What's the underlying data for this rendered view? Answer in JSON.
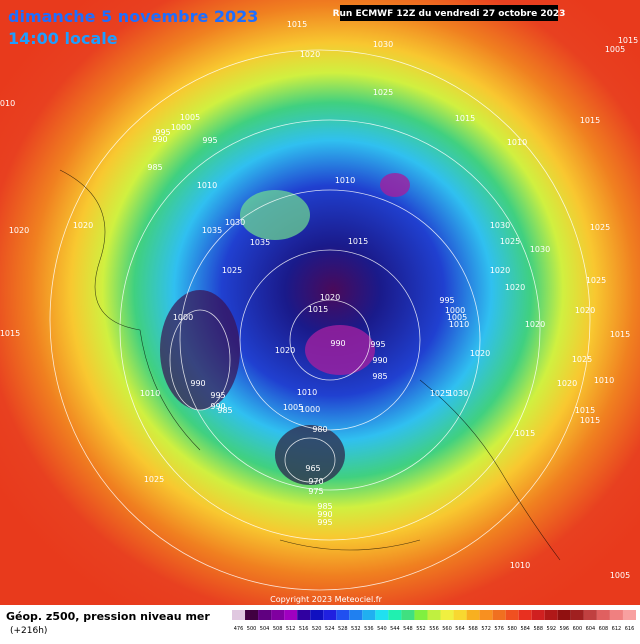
{
  "header": {
    "title": "dimanche 5 novembre 2023",
    "time": "14:00 locale",
    "run": "Run ECMWF 12Z du vendredi 27 octobre 2023"
  },
  "footer": {
    "field": "Géop. z500, pression niveau mer",
    "lead": "(+216h)",
    "copyright": "Copyright 2023 Meteociel.fr"
  },
  "colorbar": {
    "labels": [
      "476",
      "500",
      "504",
      "508",
      "512",
      "516",
      "520",
      "524",
      "528",
      "532",
      "536",
      "540",
      "544",
      "548",
      "552",
      "556",
      "560",
      "564",
      "568",
      "572",
      "576",
      "580",
      "584",
      "588",
      "592",
      "596",
      "600",
      "604",
      "608",
      "612",
      "616"
    ]
  },
  "isobar_labels": [
    "1015",
    "1020",
    "1030",
    "1025",
    "1005",
    "1000",
    "995",
    "990",
    "995",
    "985",
    "1010",
    "1010",
    "1010",
    "1015",
    "1015",
    "1030",
    "1035",
    "1035",
    "1025",
    "1015",
    "1030",
    "1025",
    "1020",
    "1030",
    "1020",
    "995",
    "1000",
    "1005",
    "1010",
    "1020",
    "1015",
    "990",
    "995",
    "990",
    "985",
    "1020",
    "1000",
    "990",
    "995",
    "990",
    "985",
    "1005",
    "1000",
    "1010",
    "980",
    "965",
    "970",
    "975",
    "985",
    "990",
    "995",
    "1010",
    "1025",
    "1020",
    "1020",
    "1015",
    "1020",
    "1020",
    "1020",
    "1025",
    "1025",
    "1025",
    "1020",
    "1015",
    "1015",
    "1015",
    "1010",
    "1015",
    "1030",
    "1025",
    "1010",
    "1005",
    "1015",
    "1005",
    "1010"
  ]
}
